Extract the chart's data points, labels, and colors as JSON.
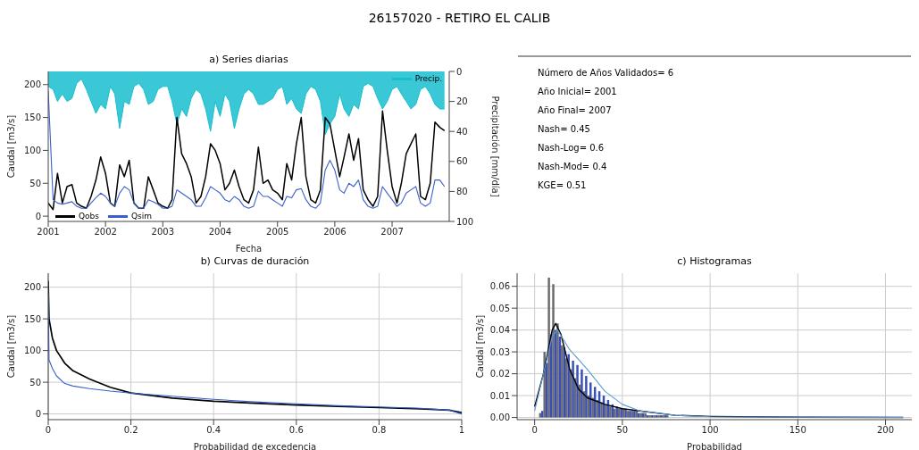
{
  "chart_data": [
    {
      "type": "line",
      "title": "26157020 - RETIRO EL CALIB",
      "subtitle": "a) Series diarias",
      "xlabel": "Fecha",
      "ylabel": "Caudal [m3/s]",
      "y2label": "Precipitación [mm/día]",
      "x": [
        "2001-01",
        "2001-02",
        "2001-03",
        "2001-04",
        "2001-05",
        "2001-06",
        "2001-07",
        "2001-08",
        "2001-09",
        "2001-10",
        "2001-11",
        "2001-12",
        "2002-01",
        "2002-02",
        "2002-03",
        "2002-04",
        "2002-05",
        "2002-06",
        "2002-07",
        "2002-08",
        "2002-09",
        "2002-10",
        "2002-11",
        "2002-12",
        "2003-01",
        "2003-02",
        "2003-03",
        "2003-04",
        "2003-05",
        "2003-06",
        "2003-07",
        "2003-08",
        "2003-09",
        "2003-10",
        "2003-11",
        "2003-12",
        "2004-01",
        "2004-02",
        "2004-03",
        "2004-04",
        "2004-05",
        "2004-06",
        "2004-07",
        "2004-08",
        "2004-09",
        "2004-10",
        "2004-11",
        "2004-12",
        "2005-01",
        "2005-02",
        "2005-03",
        "2005-04",
        "2005-05",
        "2005-06",
        "2005-07",
        "2005-08",
        "2005-09",
        "2005-10",
        "2005-11",
        "2005-12",
        "2006-01",
        "2006-02",
        "2006-03",
        "2006-04",
        "2006-05",
        "2006-06",
        "2006-07",
        "2006-08",
        "2006-09",
        "2006-10",
        "2006-11",
        "2006-12",
        "2007-01",
        "2007-02",
        "2007-03",
        "2007-04",
        "2007-05",
        "2007-06",
        "2007-07",
        "2007-08",
        "2007-09",
        "2007-10",
        "2007-11",
        "2007-12"
      ],
      "series": [
        {
          "name": "Precip.",
          "type": "area",
          "axis": "y2",
          "color": "#17becf",
          "values": [
            10,
            12,
            20,
            15,
            20,
            18,
            8,
            5,
            12,
            20,
            28,
            22,
            25,
            10,
            15,
            38,
            20,
            22,
            10,
            8,
            12,
            22,
            20,
            12,
            10,
            10,
            20,
            35,
            25,
            30,
            18,
            12,
            15,
            25,
            40,
            20,
            30,
            15,
            20,
            38,
            25,
            15,
            12,
            15,
            22,
            22,
            20,
            18,
            12,
            10,
            22,
            18,
            25,
            28,
            15,
            10,
            12,
            20,
            42,
            35,
            30,
            15,
            25,
            30,
            22,
            25,
            10,
            8,
            10,
            18,
            25,
            20,
            12,
            10,
            15,
            20,
            25,
            22,
            12,
            10,
            15,
            22,
            25,
            25
          ]
        },
        {
          "name": "Qobs",
          "color": "#000000",
          "values": [
            20,
            10,
            65,
            20,
            45,
            48,
            20,
            15,
            12,
            30,
            55,
            90,
            65,
            20,
            15,
            78,
            60,
            85,
            20,
            12,
            12,
            60,
            40,
            20,
            15,
            12,
            25,
            150,
            95,
            80,
            60,
            20,
            30,
            60,
            110,
            100,
            80,
            40,
            50,
            70,
            45,
            25,
            20,
            40,
            105,
            50,
            55,
            40,
            35,
            25,
            80,
            55,
            110,
            150,
            60,
            25,
            20,
            40,
            150,
            140,
            100,
            60,
            90,
            125,
            85,
            118,
            40,
            25,
            15,
            30,
            160,
            100,
            45,
            20,
            50,
            95,
            110,
            125,
            30,
            25,
            50,
            143,
            135,
            130
          ]
        },
        {
          "name": "Qsim",
          "color": "#3a5fcd",
          "values": [
            190,
            25,
            20,
            18,
            20,
            22,
            15,
            12,
            12,
            20,
            28,
            35,
            30,
            20,
            15,
            35,
            45,
            40,
            20,
            12,
            12,
            25,
            22,
            18,
            12,
            12,
            15,
            40,
            35,
            30,
            25,
            15,
            15,
            28,
            45,
            40,
            35,
            25,
            22,
            30,
            25,
            15,
            12,
            15,
            38,
            30,
            30,
            25,
            20,
            15,
            30,
            28,
            40,
            42,
            25,
            15,
            12,
            20,
            70,
            85,
            70,
            40,
            35,
            50,
            45,
            55,
            25,
            15,
            12,
            15,
            45,
            35,
            25,
            15,
            20,
            35,
            40,
            45,
            20,
            15,
            20,
            55,
            55,
            45
          ]
        }
      ],
      "xlim": [
        "2001-01-01",
        "2007-12-31"
      ],
      "xticks": [
        "2001",
        "2002",
        "2003",
        "2004",
        "2005",
        "2006",
        "2007"
      ],
      "ylim": [
        -8,
        220
      ],
      "yticks": [
        0,
        50,
        100,
        150,
        200
      ],
      "y2lim": [
        100,
        0
      ],
      "y2ticks": [
        0,
        20,
        40,
        60,
        80,
        100
      ],
      "legend": "bottom left"
    },
    {
      "type": "other",
      "annotations": [
        "Número de Años Validados= 6",
        "Año Inicial= 2001",
        "Año Final= 2007",
        "Nash= 0.45",
        "Nash-Log= 0.6",
        "Nash-Mod= 0.4",
        "KGE= 0.51"
      ]
    },
    {
      "type": "line",
      "title": "b) Curvas de duración",
      "xlabel": "Probabilidad de excedencia",
      "ylabel": "Caudal [m3/s]",
      "series": [
        {
          "color": "#000000",
          "x": [
            0,
            0.002,
            0.01,
            0.02,
            0.04,
            0.06,
            0.1,
            0.15,
            0.2,
            0.3,
            0.4,
            0.5,
            0.6,
            0.7,
            0.8,
            0.9,
            0.97,
            1.0
          ],
          "values": [
            210,
            150,
            120,
            100,
            80,
            68,
            55,
            42,
            33,
            25,
            20,
            17,
            14,
            12,
            10,
            8,
            6,
            2
          ]
        },
        {
          "color": "#3a5fcd",
          "x": [
            0,
            0.002,
            0.01,
            0.02,
            0.04,
            0.06,
            0.1,
            0.15,
            0.2,
            0.3,
            0.4,
            0.5,
            0.6,
            0.7,
            0.8,
            0.9,
            0.97,
            1.0
          ],
          "values": [
            190,
            85,
            72,
            60,
            48,
            44,
            40,
            36,
            33,
            28,
            23,
            19,
            16,
            13,
            11,
            9,
            6,
            0
          ]
        }
      ],
      "xlim": [
        0,
        1
      ],
      "xticks": [
        0,
        0.2,
        0.4,
        0.6,
        0.8,
        1.0
      ],
      "ylim": [
        -9,
        222
      ],
      "yticks": [
        0,
        50,
        100,
        150,
        200
      ],
      "grid": true
    },
    {
      "type": "histogram",
      "title": "c) Histogramas",
      "xlabel": "Probabilidad",
      "ylabel": "Caudal [m3/s]",
      "bins": [
        2.5,
        5,
        7.5,
        10,
        12.5,
        15,
        17.5,
        20,
        22.5,
        25,
        27.5,
        30,
        32.5,
        35,
        37.5,
        40,
        42.5,
        45,
        47.5,
        50,
        52.5,
        55,
        57.5,
        60,
        62.5,
        65,
        67.5,
        70,
        72.5,
        75,
        77.5
      ],
      "series": [
        {
          "color": "#6b6b6b",
          "values": [
            0.002,
            0.03,
            0.064,
            0.061,
            0.043,
            0.033,
            0.027,
            0.022,
            0.018,
            0.015,
            0.012,
            0.01,
            0.009,
            0.008,
            0.007,
            0.006,
            0.005,
            0.004,
            0.004,
            0.004,
            0.003,
            0.003,
            0.003,
            0.002,
            0.002,
            0.001,
            0.001,
            0.001,
            0.001,
            0.001
          ]
        },
        {
          "color": "#3a4fb5",
          "values": [
            0.003,
            0.025,
            0.038,
            0.04,
            0.037,
            0.032,
            0.029,
            0.026,
            0.024,
            0.022,
            0.019,
            0.016,
            0.014,
            0.012,
            0.01,
            0.008,
            0.006,
            0.005,
            0.004,
            0.004,
            0.003,
            0.003,
            0.002,
            0.002,
            0.001,
            0.001,
            0.001,
            0.001,
            0.001,
            0.0
          ]
        },
        {
          "type": "line",
          "color": "#000000",
          "x": [
            0,
            5,
            10,
            12,
            15,
            20,
            25,
            30,
            40,
            50,
            60,
            80,
            100,
            150,
            210
          ],
          "values": [
            0.005,
            0.02,
            0.04,
            0.043,
            0.038,
            0.022,
            0.013,
            0.009,
            0.006,
            0.004,
            0.003,
            0.001,
            0.0005,
            0.0001,
            0
          ]
        },
        {
          "type": "line",
          "color": "#5b9bd5",
          "x": [
            0,
            5,
            10,
            13,
            20,
            30,
            40,
            50,
            60,
            80,
            100,
            150,
            210
          ],
          "values": [
            0.003,
            0.02,
            0.037,
            0.04,
            0.031,
            0.022,
            0.012,
            0.006,
            0.003,
            0.001,
            0.0003,
            0.0001,
            0
          ]
        }
      ],
      "xlim": [
        -10,
        215
      ],
      "xticks": [
        0,
        50,
        100,
        150,
        200
      ],
      "ylim": [
        -0.001,
        0.066
      ],
      "yticks": [
        {
          "value": 0,
          "label": "0.00"
        },
        {
          "value": 0.01,
          "label": "0.01"
        },
        {
          "value": 0.02,
          "label": "0.02"
        },
        {
          "value": 0.03,
          "label": "0.03"
        },
        {
          "value": 0.04,
          "label": "0.04"
        },
        {
          "value": 0.05,
          "label": "0.05"
        },
        {
          "value": 0.06,
          "label": "0.06"
        }
      ],
      "grid": true
    }
  ]
}
